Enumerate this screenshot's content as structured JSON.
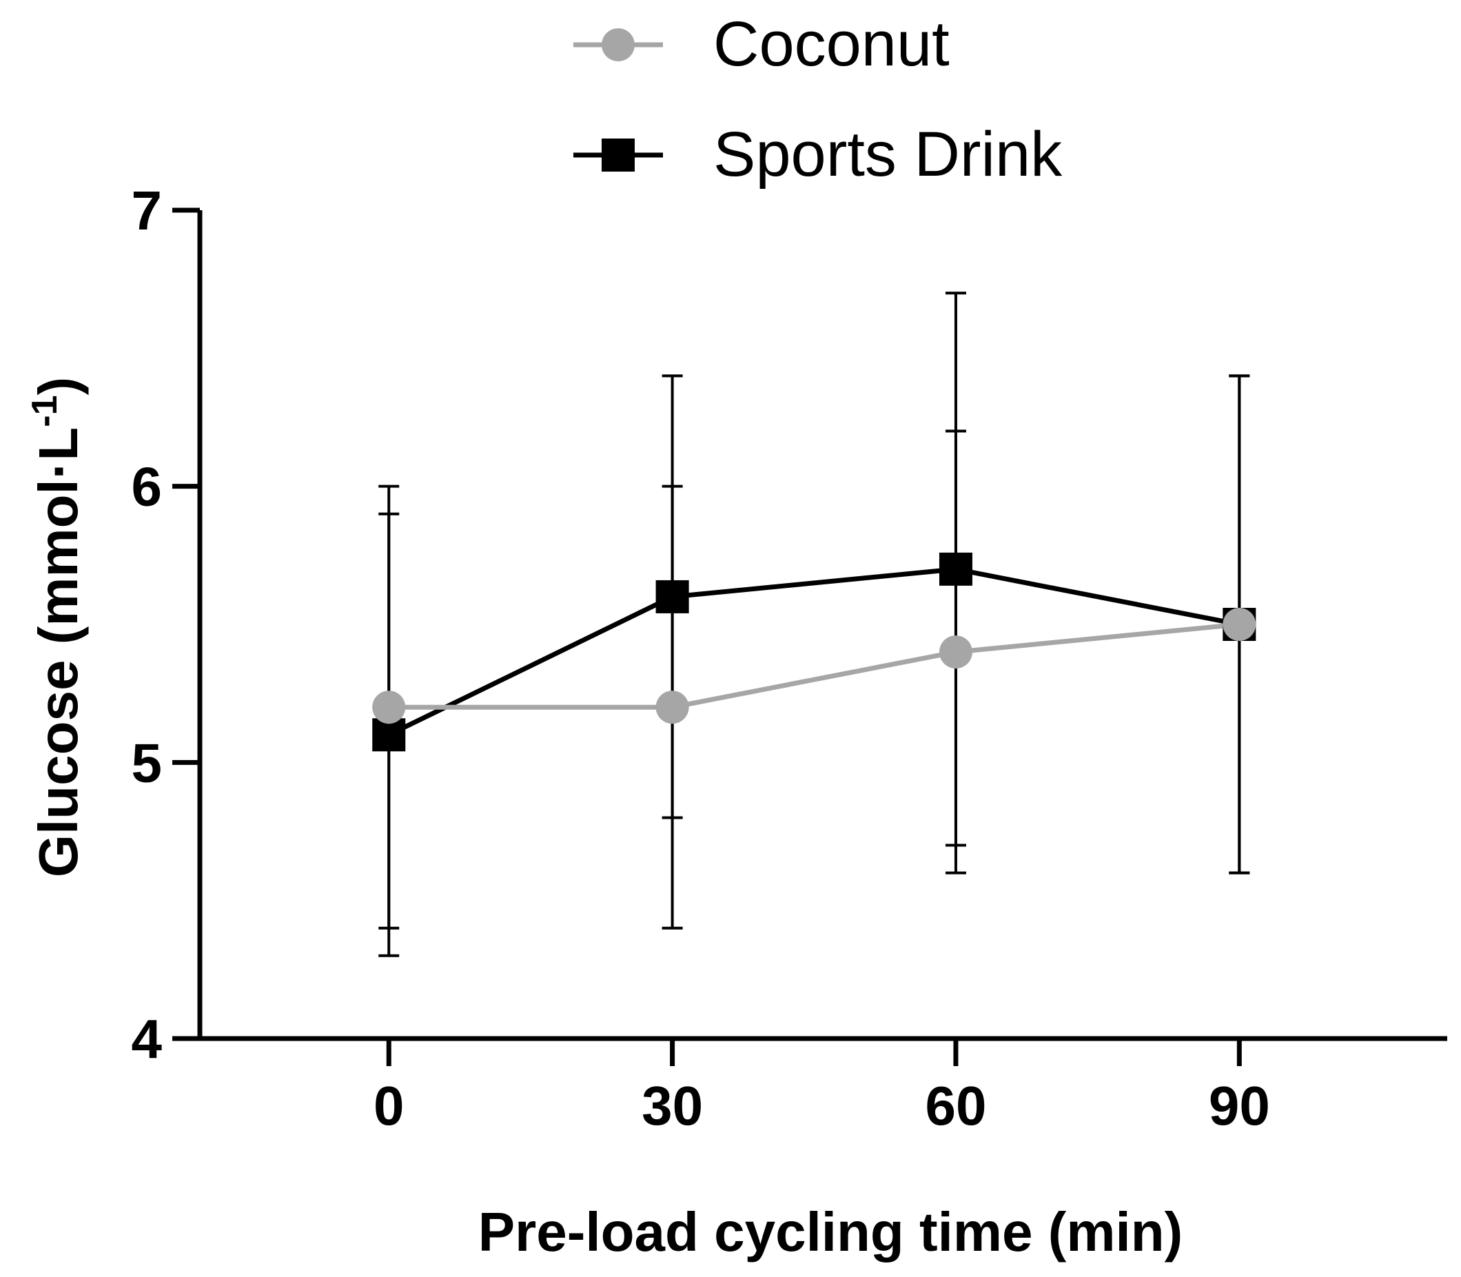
{
  "chart_data": {
    "type": "line",
    "title": "",
    "xlabel": "Pre-load cycling time (min)",
    "ylabel_main": "Glucose (mmol·L",
    "ylabel_sup": "-1",
    "ylabel_close": ")",
    "x": [
      0,
      30,
      60,
      90
    ],
    "x_tick_labels": [
      "0",
      "30",
      "60",
      "90"
    ],
    "xlim": [
      -20,
      112
    ],
    "ylim": [
      4,
      7
    ],
    "y_ticks": [
      4,
      5,
      6,
      7
    ],
    "y_tick_labels": [
      "4",
      "5",
      "6",
      "7"
    ],
    "grid": false,
    "legend_position": "top-center",
    "series": [
      {
        "name": "Coconut",
        "marker": "circle",
        "color": "#a6a6a6",
        "values": [
          5.2,
          5.2,
          5.4,
          5.5
        ],
        "error_low": [
          4.3,
          4.4,
          4.7,
          4.6
        ],
        "error_high": [
          6.0,
          6.0,
          6.2,
          6.4
        ]
      },
      {
        "name": "Sports Drink",
        "marker": "square",
        "color": "#000000",
        "values": [
          5.1,
          5.6,
          5.7,
          5.5
        ],
        "error_low": [
          4.4,
          4.8,
          4.6,
          4.6
        ],
        "error_high": [
          5.9,
          6.4,
          6.7,
          6.4
        ]
      }
    ]
  }
}
